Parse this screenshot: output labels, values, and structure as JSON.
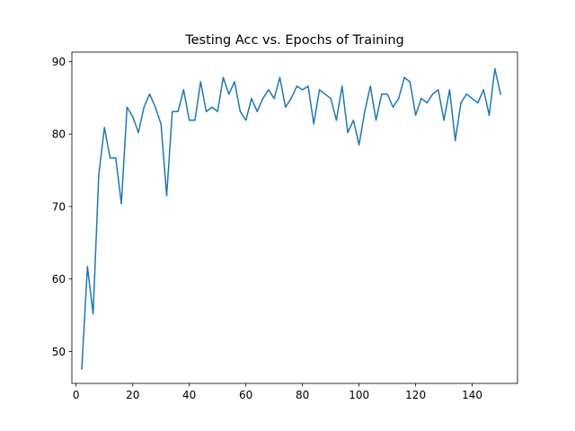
{
  "chart_data": {
    "type": "line",
    "title": "Testing Acc vs. Epochs of Training",
    "xlabel": "",
    "ylabel": "",
    "xlim": [
      -1.5,
      156
    ],
    "ylim": [
      45.6,
      91.3
    ],
    "xticks": [
      0,
      20,
      40,
      60,
      80,
      100,
      120,
      140
    ],
    "yticks": [
      50,
      60,
      70,
      80,
      90
    ],
    "grid": false,
    "line_color": "#1f77b4",
    "series": [
      {
        "x": [
          2,
          4,
          6,
          8,
          10,
          12,
          14,
          16,
          18,
          20,
          22,
          24,
          26,
          28,
          30,
          32,
          34,
          36,
          38,
          40,
          42,
          44,
          46,
          48,
          50,
          52,
          54,
          56,
          58,
          60,
          62,
          64,
          66,
          68,
          70,
          72,
          74,
          76,
          78,
          80,
          82,
          84,
          86,
          88,
          90,
          92,
          94,
          96,
          98,
          100,
          102,
          104,
          106,
          108,
          110,
          112,
          114,
          116,
          118,
          120,
          122,
          124,
          126,
          128,
          130,
          132,
          134,
          136,
          138,
          140,
          142,
          144,
          146,
          148,
          150
        ],
        "values": [
          47.6,
          61.7,
          55.2,
          74.3,
          80.9,
          76.7,
          76.7,
          70.4,
          83.7,
          82.4,
          80.2,
          83.7,
          85.5,
          83.7,
          81.4,
          71.5,
          83.1,
          83.1,
          86.1,
          81.9,
          81.9,
          87.2,
          83.1,
          83.7,
          83.1,
          87.8,
          85.5,
          87.2,
          83.1,
          81.9,
          84.9,
          83.1,
          84.9,
          86.1,
          84.9,
          87.8,
          83.7,
          84.9,
          86.6,
          86.1,
          86.6,
          81.4,
          86.1,
          85.5,
          84.9,
          81.9,
          86.6,
          80.2,
          81.9,
          78.5,
          83.1,
          86.6,
          81.9,
          85.5,
          85.5,
          83.7,
          84.9,
          87.8,
          87.2,
          82.6,
          84.9,
          84.3,
          85.5,
          86.1,
          81.9,
          86.1,
          79.1,
          84.3,
          85.5,
          84.9,
          84.3,
          86.1,
          82.6,
          89.0,
          85.5
        ]
      }
    ]
  }
}
